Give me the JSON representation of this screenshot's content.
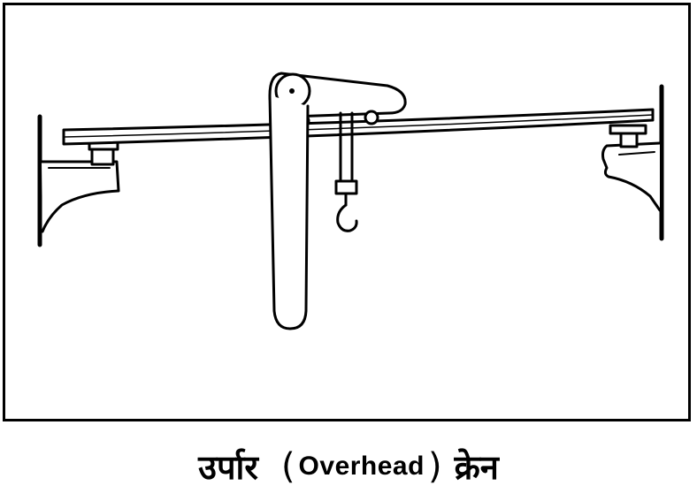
{
  "caption": {
    "hindi_before": "उर्पार",
    "paren_open": "(",
    "english": "Overhead",
    "paren_close": ")",
    "hindi_after": "क्रेन"
  },
  "colors": {
    "ink": "#000000",
    "paper": "#ffffff"
  }
}
